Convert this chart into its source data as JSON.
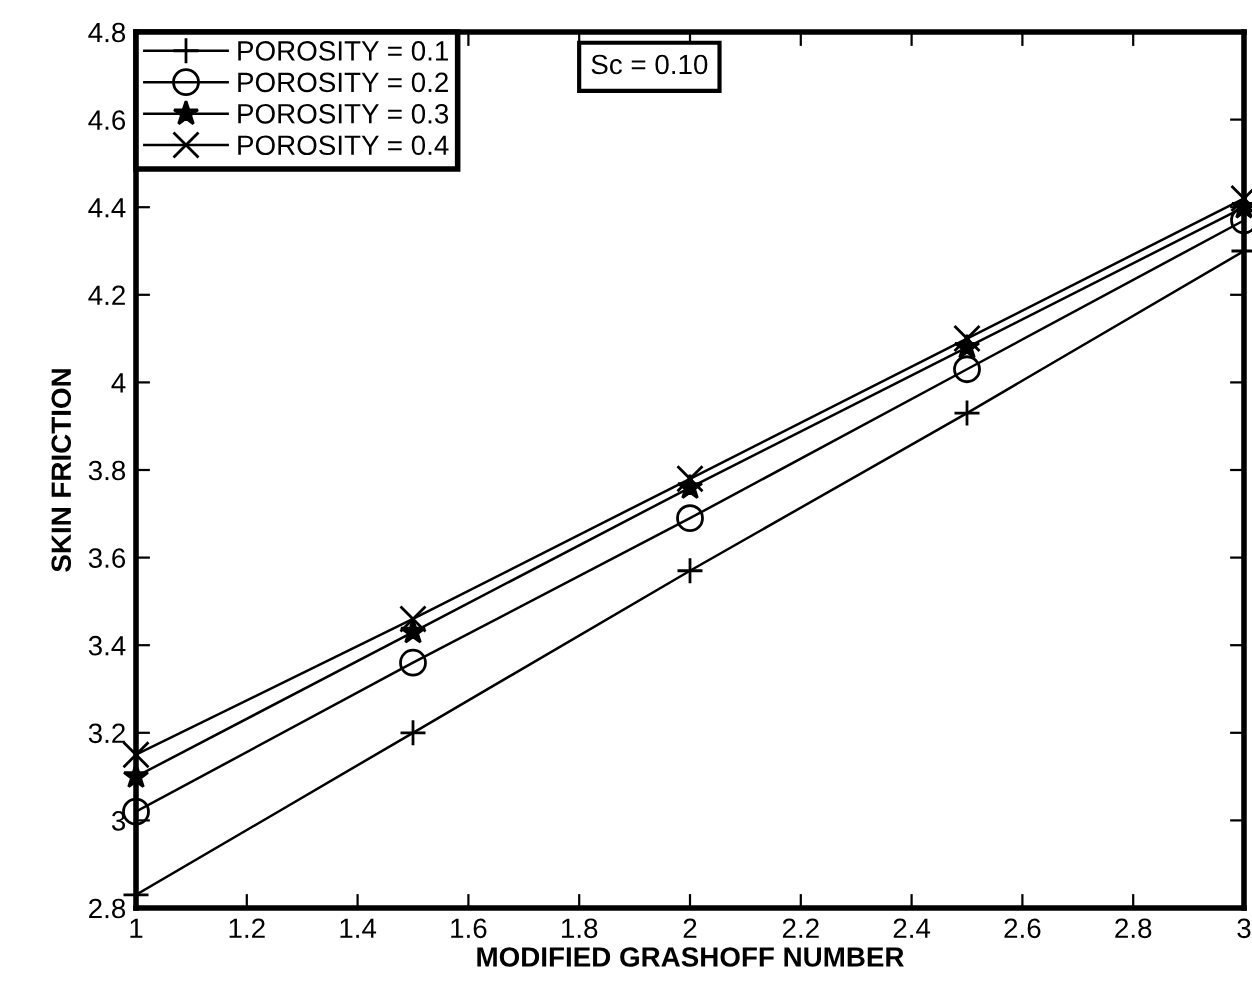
{
  "chart_data": {
    "type": "line",
    "xlabel": "MODIFIED GRASHOFF NUMBER",
    "ylabel": "SKIN FRICTION",
    "x": [
      1,
      1.5,
      2,
      2.5,
      3
    ],
    "series": [
      {
        "name": "POROSITY = 0.1",
        "color": "#000000",
        "marker": "plus",
        "values": [
          2.83,
          3.2,
          3.57,
          3.93,
          4.3
        ]
      },
      {
        "name": "POROSITY = 0.2",
        "color": "#000000",
        "marker": "circle",
        "values": [
          3.02,
          3.36,
          3.69,
          4.03,
          4.37
        ]
      },
      {
        "name": "POROSITY = 0.3",
        "color": "#000000",
        "marker": "star",
        "values": [
          3.1,
          3.43,
          3.76,
          4.08,
          4.4
        ]
      },
      {
        "name": "POROSITY = 0.4",
        "color": "#000000",
        "marker": "cross",
        "values": [
          3.15,
          3.46,
          3.78,
          4.1,
          4.42
        ]
      }
    ],
    "annotations": [
      "Sc = 0.10"
    ],
    "xlim": [
      1,
      3
    ],
    "xticks": [
      1,
      1.2,
      1.4,
      1.6,
      1.8,
      2,
      2.2,
      2.4,
      2.6,
      2.8,
      3
    ],
    "ylim": [
      2.8,
      4.8
    ],
    "yticks": [
      2.8,
      3,
      3.2,
      3.4,
      3.6,
      3.8,
      4,
      4.2,
      4.4,
      4.6,
      4.8
    ],
    "grid": false,
    "legend": "top left",
    "line_style": "solid"
  }
}
